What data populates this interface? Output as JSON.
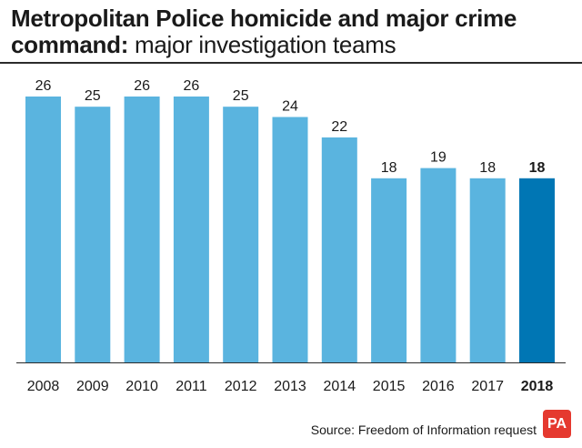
{
  "header": {
    "title_bold": "Metropolitan Police homicide and major crime command:",
    "title_light": "major investigation teams"
  },
  "source": "Source: Freedom of Information request",
  "logo": "PA",
  "colors": {
    "bar": "#5ab4df",
    "highlight": "#0076b4"
  },
  "chart_data": {
    "type": "bar",
    "title": "Metropolitan Police homicide and major crime command: major investigation teams",
    "categories": [
      "2008",
      "2009",
      "2010",
      "2011",
      "2012",
      "2013",
      "2014",
      "2015",
      "2016",
      "2017",
      "2018"
    ],
    "values": [
      26,
      25,
      26,
      26,
      25,
      24,
      22,
      18,
      19,
      18,
      18
    ],
    "highlight": "2018",
    "ylim": [
      0,
      26
    ],
    "grid": false,
    "legend": "none",
    "data_labels": true
  }
}
